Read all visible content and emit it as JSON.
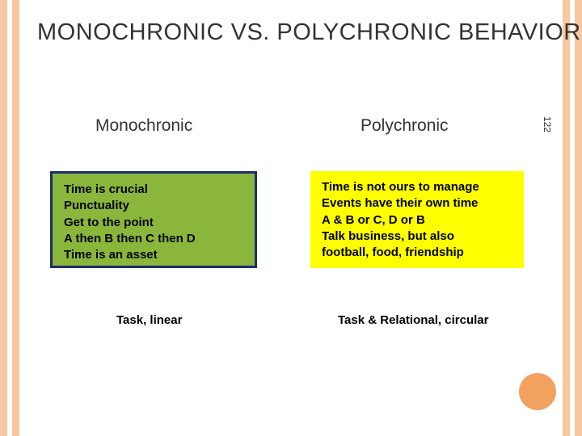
{
  "title": "MONOCHRONIC VS. POLYCHRONIC BEHAVIOR",
  "page_number": "122",
  "columns": {
    "left": {
      "heading": "Monochronic",
      "box_bg": "#8bb63c",
      "box_border": "#1b2e6b",
      "lines": [
        "Time is crucial",
        "Punctuality",
        "Get to the point",
        "A then B then C then D",
        "Time is an asset"
      ],
      "summary": "Task, linear"
    },
    "right": {
      "heading": "Polychronic",
      "box_bg": "#ffff00",
      "lines": [
        "Time is not ours to manage",
        "Events have their own time",
        "A & B or C, D or B",
        "Talk business, but also",
        "football, food, friendship"
      ],
      "summary": "Task & Relational, circular"
    }
  },
  "theme": {
    "stripe_color": "#f7c8a0",
    "accent_circle": "#f2a15f",
    "background": "#ffffff",
    "title_color": "#333333"
  }
}
